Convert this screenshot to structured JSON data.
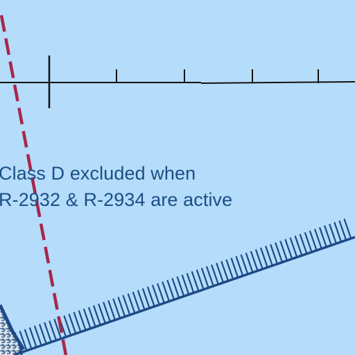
{
  "map": {
    "background_color": "#b5dcfa",
    "note": {
      "line1": "Class D excluded when",
      "line2": "R-2932 & R-2934 are active",
      "color": "#1b4f86"
    },
    "colors": {
      "boundary_dash": "#a8264b",
      "scale_line": "#111111",
      "restricted_area_border": "#1c4a86",
      "hatch_ticks": "#1c4a86"
    },
    "features": {
      "scale_bar": "distance-scale-ticks",
      "dashed_boundary": "class-d-boundary-dashed",
      "hatched_border": "restricted-area-boundary",
      "corner_pattern": "restricted-area-corner-fill"
    }
  }
}
